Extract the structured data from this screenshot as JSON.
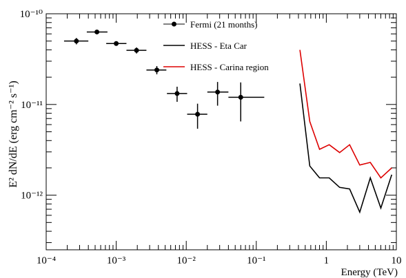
{
  "chart_data": {
    "type": "scatter",
    "xscale": "log",
    "yscale": "log",
    "xlim": [
      0.0001,
      10
    ],
    "ylim": [
      2.5e-13,
      1e-10
    ],
    "xlabel": "Energy (TeV)",
    "ylabel": "E² dN/dE (erg cm⁻² s⁻¹)",
    "x_ticks": [
      {
        "value": 0.0001,
        "label": "10⁻⁴"
      },
      {
        "value": 0.001,
        "label": "10⁻³"
      },
      {
        "value": 0.01,
        "label": "10⁻²"
      },
      {
        "value": 0.1,
        "label": "10⁻¹"
      },
      {
        "value": 1,
        "label": "1"
      },
      {
        "value": 10,
        "label": "10"
      }
    ],
    "y_ticks": [
      {
        "value": 1e-12,
        "label": "10⁻¹²"
      },
      {
        "value": 1e-11,
        "label": "10⁻¹¹"
      },
      {
        "value": 1e-10,
        "label": "10⁻¹⁰"
      }
    ],
    "legend": {
      "position": "top-right",
      "entries": [
        {
          "label": "Fermi (21 months)",
          "color": "#000000",
          "style": "marker-line"
        },
        {
          "label": "HESS - Eta Car",
          "color": "#000000",
          "style": "line"
        },
        {
          "label": "HESS - Carina region",
          "color": "#dd0000",
          "style": "line"
        }
      ]
    },
    "series": [
      {
        "name": "Fermi (21 months)",
        "kind": "points-errorbars",
        "color": "#000000",
        "points": [
          {
            "x": 0.00027,
            "y": 5e-11,
            "xlo": 0.00018,
            "xhi": 0.0004,
            "ylo": 4.6e-11,
            "yhi": 5.4e-11
          },
          {
            "x": 0.00053,
            "y": 6.3e-11,
            "xlo": 0.00038,
            "xhi": 0.00075,
            "ylo": 6e-11,
            "yhi": 6.6e-11
          },
          {
            "x": 0.001,
            "y": 4.7e-11,
            "xlo": 0.00072,
            "xhi": 0.0014,
            "ylo": 4.45e-11,
            "yhi": 4.95e-11
          },
          {
            "x": 0.00195,
            "y": 3.95e-11,
            "xlo": 0.0014,
            "xhi": 0.0027,
            "ylo": 3.65e-11,
            "yhi": 4.25e-11
          },
          {
            "x": 0.0038,
            "y": 2.4e-11,
            "xlo": 0.0027,
            "xhi": 0.0052,
            "ylo": 2.15e-11,
            "yhi": 2.65e-11
          },
          {
            "x": 0.0074,
            "y": 1.32e-11,
            "xlo": 0.0053,
            "xhi": 0.0103,
            "ylo": 1.07e-11,
            "yhi": 1.57e-11
          },
          {
            "x": 0.0145,
            "y": 7.8e-12,
            "xlo": 0.0103,
            "xhi": 0.02,
            "ylo": 5.4e-12,
            "yhi": 1.02e-11
          },
          {
            "x": 0.028,
            "y": 1.37e-11,
            "xlo": 0.02,
            "xhi": 0.04,
            "ylo": 9.7e-12,
            "yhi": 1.77e-11
          },
          {
            "x": 0.06,
            "y": 1.2e-11,
            "xlo": 0.04,
            "xhi": 0.13,
            "ylo": 6.5e-12,
            "yhi": 1.75e-11
          }
        ]
      },
      {
        "name": "HESS - Eta Car",
        "kind": "line",
        "color": "#000000",
        "x": [
          0.42,
          0.58,
          0.8,
          1.1,
          1.55,
          2.15,
          3.0,
          4.25,
          6.0,
          8.6
        ],
        "y": [
          1.7e-11,
          2.1e-12,
          1.55e-12,
          1.55e-12,
          1.22e-12,
          1.17e-12,
          6.5e-13,
          1.55e-12,
          7.2e-13,
          1.68e-12
        ]
      },
      {
        "name": "HESS - Carina region",
        "kind": "line",
        "color": "#dd0000",
        "x": [
          0.42,
          0.58,
          0.8,
          1.1,
          1.55,
          2.15,
          3.0,
          4.25,
          6.0,
          8.6
        ],
        "y": [
          4e-11,
          6.5e-12,
          3.2e-12,
          3.6e-12,
          2.95e-12,
          3.6e-12,
          2.15e-12,
          2.3e-12,
          1.55e-12,
          2e-12
        ]
      }
    ]
  }
}
